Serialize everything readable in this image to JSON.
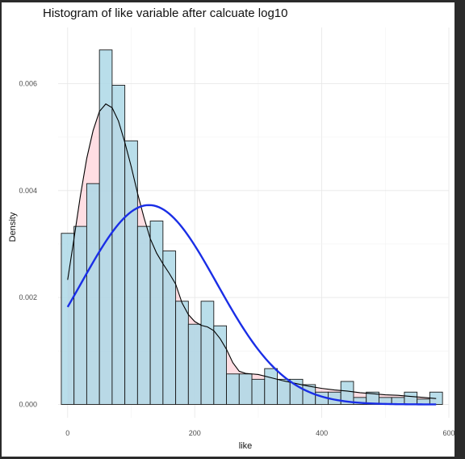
{
  "chart_data": {
    "type": "histogram",
    "title": "Histogram of like variable after calcuate log10",
    "xlabel": "like",
    "ylabel": "Density",
    "xlim": [
      -15,
      600
    ],
    "ylim": [
      -0.00025,
      0.00705
    ],
    "xticks": [
      0,
      200,
      400,
      600
    ],
    "xtick_labels": [
      "0",
      "200",
      "400",
      "600"
    ],
    "yticks": [
      0,
      0.002,
      0.004,
      0.006
    ],
    "ytick_labels": [
      "0.000",
      "0.002",
      "0.004",
      "0.006"
    ],
    "grid": true,
    "bins": {
      "start": -10,
      "width": 20,
      "densities": [
        0.0032,
        0.00333,
        0.00413,
        0.00663,
        0.00597,
        0.00493,
        0.00333,
        0.00343,
        0.00287,
        0.00193,
        0.0015,
        0.00193,
        0.00147,
        0.00057,
        0.00057,
        0.00047,
        0.00067,
        0.00047,
        0.00047,
        0.00037,
        0.00023,
        0.00023,
        0.00043,
        0.00013,
        0.00023,
        0.00013,
        0.00013,
        0.00023,
        0.0001,
        0.00023
      ]
    },
    "fill_color": "#add8e6",
    "kde": {
      "fill": "#ffb6c1",
      "line_color": "#000000",
      "x": [
        0,
        10,
        20,
        30,
        40,
        50,
        60,
        70,
        80,
        90,
        100,
        110,
        120,
        130,
        140,
        150,
        160,
        170,
        180,
        190,
        200,
        210,
        220,
        230,
        240,
        250,
        260,
        270,
        280,
        290,
        300,
        320,
        340,
        360,
        380,
        400,
        420,
        440,
        460,
        480,
        500,
        520,
        540,
        560,
        580
      ],
      "y": [
        0.00233,
        0.0031,
        0.0039,
        0.0046,
        0.00512,
        0.00548,
        0.00562,
        0.00555,
        0.0053,
        0.0049,
        0.00445,
        0.00395,
        0.0035,
        0.0031,
        0.00283,
        0.00263,
        0.00245,
        0.00225,
        0.0019,
        0.00168,
        0.00155,
        0.00148,
        0.00145,
        0.00138,
        0.00123,
        0.00103,
        0.00078,
        0.00062,
        0.00058,
        0.00057,
        0.00056,
        0.0005,
        0.00044,
        0.00039,
        0.00034,
        0.0003,
        0.00027,
        0.00025,
        0.00022,
        0.0002,
        0.00018,
        0.00017,
        0.00015,
        0.00013,
        0.00011
      ]
    },
    "normal_curve": {
      "mean": 128,
      "sd": 107,
      "color": "#1a2ee6",
      "x_range": [
        0,
        580
      ]
    }
  }
}
